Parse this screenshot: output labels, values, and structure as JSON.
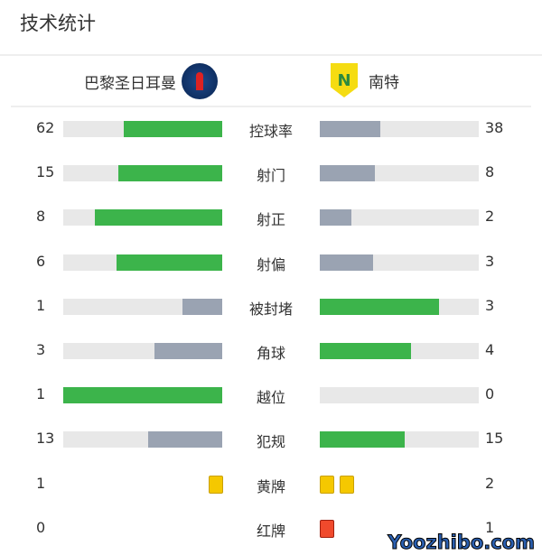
{
  "header": {
    "title": "技术统计"
  },
  "teams": {
    "home": {
      "name": "巴黎圣日耳曼",
      "logo": "PSG"
    },
    "away": {
      "name": "南特",
      "logo": "N"
    }
  },
  "colors": {
    "leader": "#3cb44b",
    "trailer": "#9aa3b2",
    "track": "#e8e8e8",
    "yellow_card": "#f5c800",
    "red_card": "#f04a2c"
  },
  "stats": [
    {
      "label": "控球率",
      "home": 62,
      "away": 38
    },
    {
      "label": "射门",
      "home": 15,
      "away": 8
    },
    {
      "label": "射正",
      "home": 8,
      "away": 2
    },
    {
      "label": "射偏",
      "home": 6,
      "away": 3
    },
    {
      "label": "被封堵",
      "home": 1,
      "away": 3
    },
    {
      "label": "角球",
      "home": 3,
      "away": 4
    },
    {
      "label": "越位",
      "home": 1,
      "away": 0
    },
    {
      "label": "犯规",
      "home": 13,
      "away": 15
    }
  ],
  "cards": [
    {
      "label": "黄牌",
      "home": 1,
      "away": 2,
      "type": "yellow"
    },
    {
      "label": "红牌",
      "home": 0,
      "away": 1,
      "type": "red"
    }
  ],
  "watermark": "Yoozhibo.com"
}
